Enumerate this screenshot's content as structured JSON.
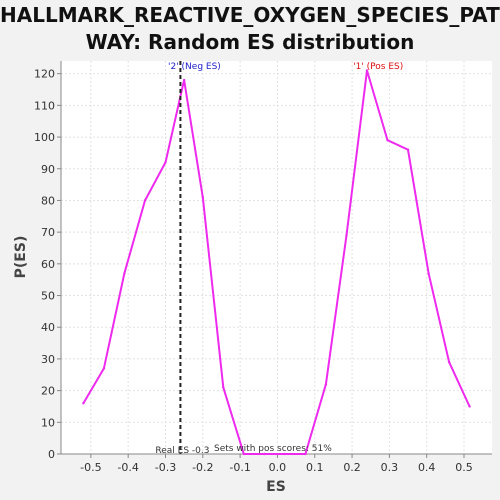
{
  "chart_data": {
    "type": "line",
    "title_line1": "HALLMARK_REACTIVE_OXYGEN_SPECIES_PATH",
    "title_line2": "WAY: Random ES distribution",
    "xlabel": "ES",
    "ylabel": "P(ES)",
    "xlim": [
      -0.58,
      0.575
    ],
    "ylim": [
      0,
      124
    ],
    "xticks": [
      "-0.5",
      "-0.4",
      "-0.3",
      "-0.2",
      "-0.1",
      "0.0",
      "0.1",
      "0.2",
      "0.3",
      "0.4",
      "0.5"
    ],
    "xtick_values": [
      -0.5,
      -0.4,
      -0.3,
      -0.2,
      -0.1,
      0.0,
      0.1,
      0.2,
      0.3,
      0.4,
      0.5
    ],
    "yticks": [
      "0",
      "10",
      "20",
      "30",
      "40",
      "50",
      "60",
      "70",
      "80",
      "90",
      "100",
      "110",
      "120"
    ],
    "ytick_values": [
      0,
      10,
      20,
      30,
      40,
      50,
      60,
      70,
      80,
      90,
      100,
      110,
      120
    ],
    "grid": true,
    "series": [
      {
        "color": "#ee2aee",
        "x": [
          -0.52,
          -0.465,
          -0.41,
          -0.355,
          -0.3,
          -0.25,
          -0.2,
          -0.145,
          -0.09,
          -0.035,
          0.02,
          0.075,
          0.13,
          0.185,
          0.24,
          0.295,
          0.35,
          0.405,
          0.46,
          0.515
        ],
        "y": [
          16,
          27,
          57,
          80,
          92,
          118,
          81,
          21,
          0,
          0,
          0,
          0,
          22,
          69,
          121,
          99,
          96,
          57,
          29,
          15
        ]
      }
    ],
    "reference_line": {
      "x": -0.26,
      "label": "Real ES -0.3"
    },
    "annotations": {
      "neg_label": "'2' (Neg ES)",
      "neg_color": "#2222cc",
      "pos_label": "'1' (Pos ES)",
      "pos_color": "#dd1111",
      "pos_scores": "Sets with pos scores: 51%"
    }
  }
}
